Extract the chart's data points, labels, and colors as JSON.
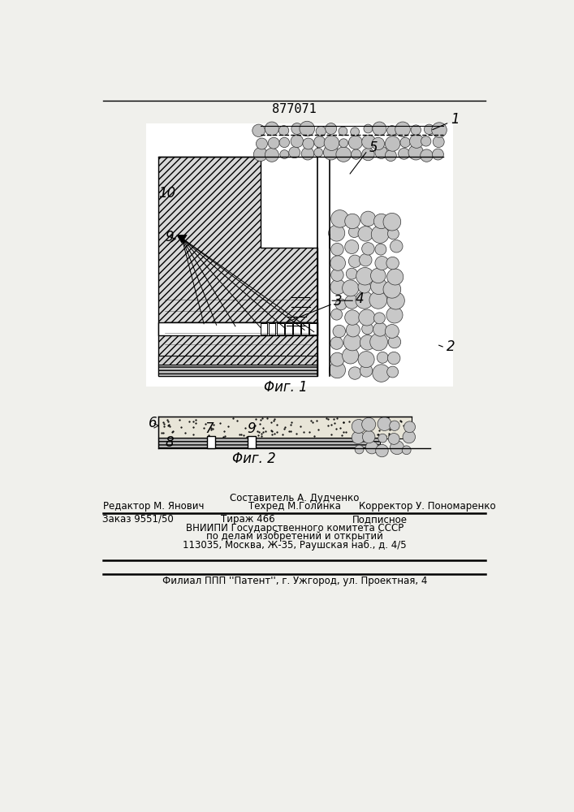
{
  "patent_number": "877071",
  "fig1_caption": "Φиг. 1",
  "fig2_caption": "Φиг. 2",
  "footer_line0_center": "Составитель А. Дудченко",
  "footer_line1_left": "Редактор М. Янович",
  "footer_line1_center": "Техред М.Голинка",
  "footer_line1_right": "Корректор У. Пономаренко",
  "footer_line2_left": "Заказ 9551/50",
  "footer_line2_center": "Тираж 466",
  "footer_line2_right": "Подписное",
  "footer_line3": "ВНИИПИ Государственного комитета СССР",
  "footer_line4": "по делам изобретений и открытий",
  "footer_line5": "113035, Москва, Ж-35, Раушская наб., д. 4/5",
  "footer_line6": "Филиал ППП ''Патент'', г. Ужгород, ул. Проектная, 4",
  "bg_color": "#f0f0ec"
}
